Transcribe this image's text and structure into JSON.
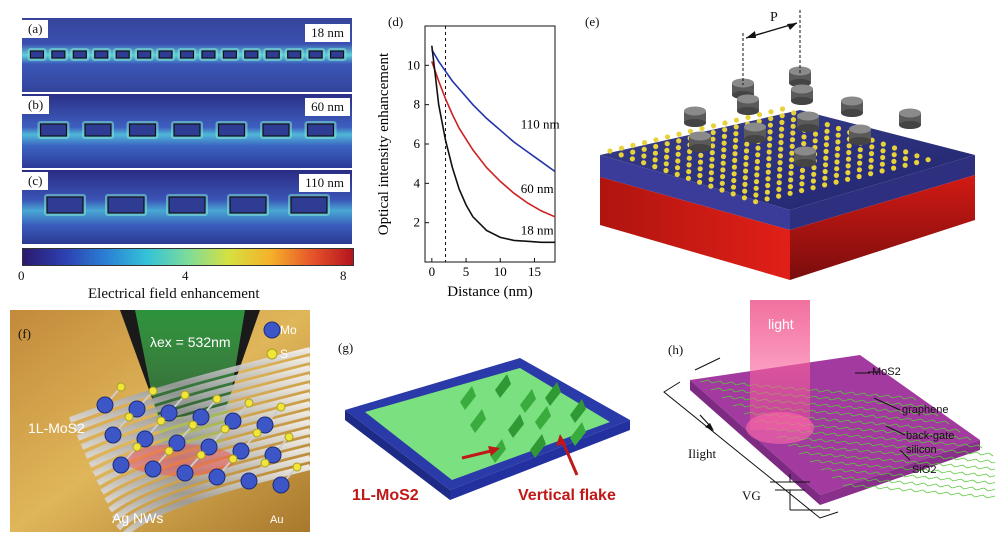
{
  "panels": {
    "a": {
      "label": "(a)",
      "thickness": "18 nm",
      "rect_count": 15
    },
    "b": {
      "label": "(b)",
      "thickness": "60 nm",
      "rect_count": 7
    },
    "c": {
      "label": "(c)",
      "thickness": "110 nm",
      "rect_count": 5
    },
    "d": {
      "label": "(d)"
    },
    "e": {
      "label": "(e)",
      "period_label": "P"
    },
    "f": {
      "label": "(f)",
      "excitation": "λex = 532nm",
      "legend_mo": "Mo",
      "legend_s": "S",
      "material": "1L-MoS2",
      "nanowires": "Ag NWs",
      "substrate": "Au"
    },
    "g": {
      "label": "(g)",
      "material": "1L-MoS2",
      "vertical": "Vertical flake"
    },
    "h": {
      "label": "(h)",
      "light": "light",
      "mos2": "MoS2",
      "graphene": "graphene",
      "backgate1": "back-gate",
      "backgate2": "silicon",
      "sio2": "SiO2",
      "current": "Ilight",
      "voltage": "VG"
    }
  },
  "colorbar": {
    "ticks": [
      "0",
      "4",
      "8"
    ],
    "title": "Electrical field enhancement",
    "colors": [
      "#2b1a6e",
      "#2d3fb0",
      "#2a7fd4",
      "#33c2d8",
      "#7ddc9a",
      "#d6e040",
      "#f5b12a",
      "#e7552a",
      "#b3141e"
    ]
  },
  "chart_data": {
    "type": "line",
    "xlabel": "Distance  (nm)",
    "ylabel": "Optical intensity enhancement",
    "xlim": [
      -1,
      18
    ],
    "ylim": [
      0,
      12
    ],
    "xticks": [
      0,
      5,
      10,
      15
    ],
    "yticks": [
      2,
      4,
      6,
      8,
      10
    ],
    "vline_x": 2,
    "series": [
      {
        "name": "110 nm",
        "color": "#2233aa",
        "x": [
          0,
          1,
          2,
          3,
          4,
          6,
          8,
          10,
          12,
          14,
          16,
          18
        ],
        "y": [
          10.8,
          10.2,
          9.7,
          9.2,
          8.8,
          8.0,
          7.3,
          6.7,
          6.1,
          5.6,
          5.1,
          4.6
        ]
      },
      {
        "name": "60 nm",
        "color": "#cc2222",
        "x": [
          0,
          1,
          2,
          3,
          4,
          6,
          8,
          10,
          12,
          14,
          16,
          18
        ],
        "y": [
          10.2,
          9.2,
          8.3,
          7.5,
          6.8,
          5.7,
          4.8,
          4.1,
          3.5,
          3.0,
          2.6,
          2.3
        ]
      },
      {
        "name": "18 nm",
        "color": "#111111",
        "x": [
          0,
          0.5,
          1,
          2,
          3,
          4,
          5,
          6,
          8,
          10,
          12,
          14,
          16,
          18
        ],
        "y": [
          11.0,
          9.5,
          8.0,
          6.2,
          4.8,
          3.7,
          2.9,
          2.3,
          1.6,
          1.25,
          1.1,
          1.05,
          1.0,
          1.0
        ]
      }
    ]
  }
}
